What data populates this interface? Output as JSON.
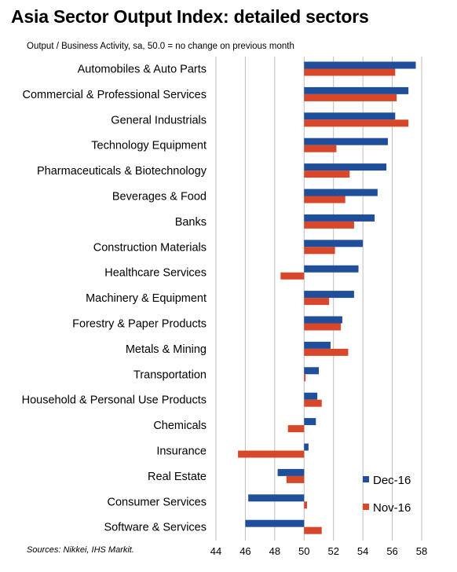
{
  "title": "Asia Sector Output Index: detailed sectors",
  "subtitle": "Output  / Business Activity, sa, 50.0 = no change on previous month",
  "source": "Sources: Nikkei, IHS Markit.",
  "chart_data": {
    "type": "bar",
    "orientation": "horizontal",
    "baseline": 50,
    "xlim": [
      44,
      58
    ],
    "xticks": [
      "44",
      "46",
      "48",
      "50",
      "52",
      "54",
      "56",
      "58"
    ],
    "grid": true,
    "legend_position": "bottom-right",
    "categories": [
      "Automobiles & Auto Parts",
      "Commercial & Professional Services",
      "General Industrials",
      "Technology Equipment",
      "Pharmaceuticals & Biotechnology",
      "Beverages & Food",
      "Banks",
      "Construction Materials",
      "Healthcare Services",
      "Machinery & Equipment",
      "Forestry & Paper Products",
      "Metals & Mining",
      "Transportation",
      "Household & Personal Use Products",
      "Chemicals",
      "Insurance",
      "Real Estate",
      "Consumer Services",
      "Software & Services"
    ],
    "series": [
      {
        "name": "Dec-16",
        "color": "#1f4e9a",
        "values": [
          57.6,
          57.1,
          56.2,
          55.7,
          55.6,
          55.0,
          54.8,
          54.0,
          53.7,
          53.4,
          52.6,
          51.8,
          51.0,
          50.9,
          50.8,
          50.3,
          48.2,
          46.2,
          46.0
        ]
      },
      {
        "name": "Nov-16",
        "color": "#d9472b",
        "values": [
          56.2,
          56.3,
          57.1,
          52.2,
          53.1,
          52.8,
          53.4,
          52.1,
          48.4,
          51.7,
          52.5,
          53.0,
          50.1,
          51.2,
          48.9,
          45.5,
          48.8,
          50.2,
          51.2
        ]
      }
    ]
  }
}
